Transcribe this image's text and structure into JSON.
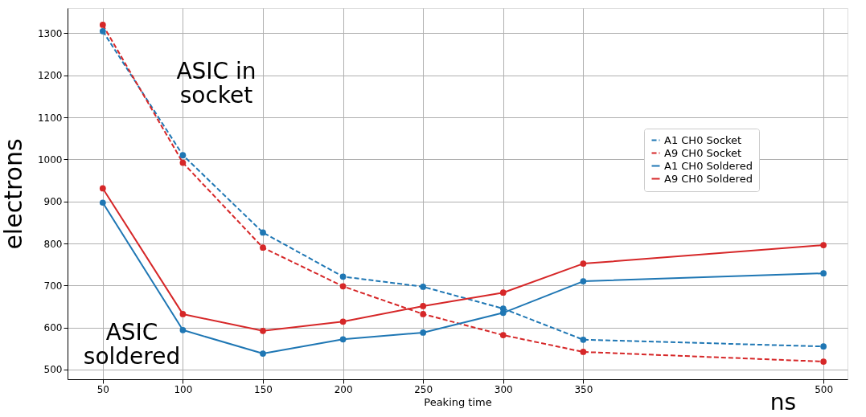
{
  "chart_data": {
    "type": "line",
    "xlabel": "Peaking time",
    "ylabel": "electrons",
    "x": [
      50,
      100,
      150,
      200,
      250,
      300,
      350,
      500
    ],
    "series": [
      {
        "name": "A1 CH0 Socket",
        "color": "#1f77b4",
        "line_style": "dashed",
        "values": [
          1305,
          1010,
          826,
          721,
          697,
          645,
          571,
          555
        ]
      },
      {
        "name": "A9 CH0 Socket",
        "color": "#d62728",
        "line_style": "dashed",
        "values": [
          1320,
          992,
          790,
          698,
          632,
          582,
          542,
          519
        ]
      },
      {
        "name": "A1 CH0 Soldered",
        "color": "#1f77b4",
        "line_style": "solid",
        "values": [
          897,
          594,
          538,
          572,
          588,
          635,
          710,
          729
        ]
      },
      {
        "name": "A9 CH0 Soldered",
        "color": "#d62728",
        "line_style": "solid",
        "values": [
          931,
          632,
          592,
          614,
          651,
          683,
          752,
          796
        ]
      }
    ],
    "xlim": [
      28,
      515
    ],
    "ylim": [
      477,
      1360
    ],
    "xticks": [
      50,
      100,
      150,
      200,
      250,
      300,
      350,
      500
    ],
    "yticks": [
      500,
      600,
      700,
      800,
      900,
      1000,
      1100,
      1200,
      1300
    ],
    "annotations": [
      "ASIC in\nsocket",
      "ASIC\nsoldered",
      "ns"
    ],
    "grid": true,
    "legend": "right",
    "marker": "circle"
  }
}
